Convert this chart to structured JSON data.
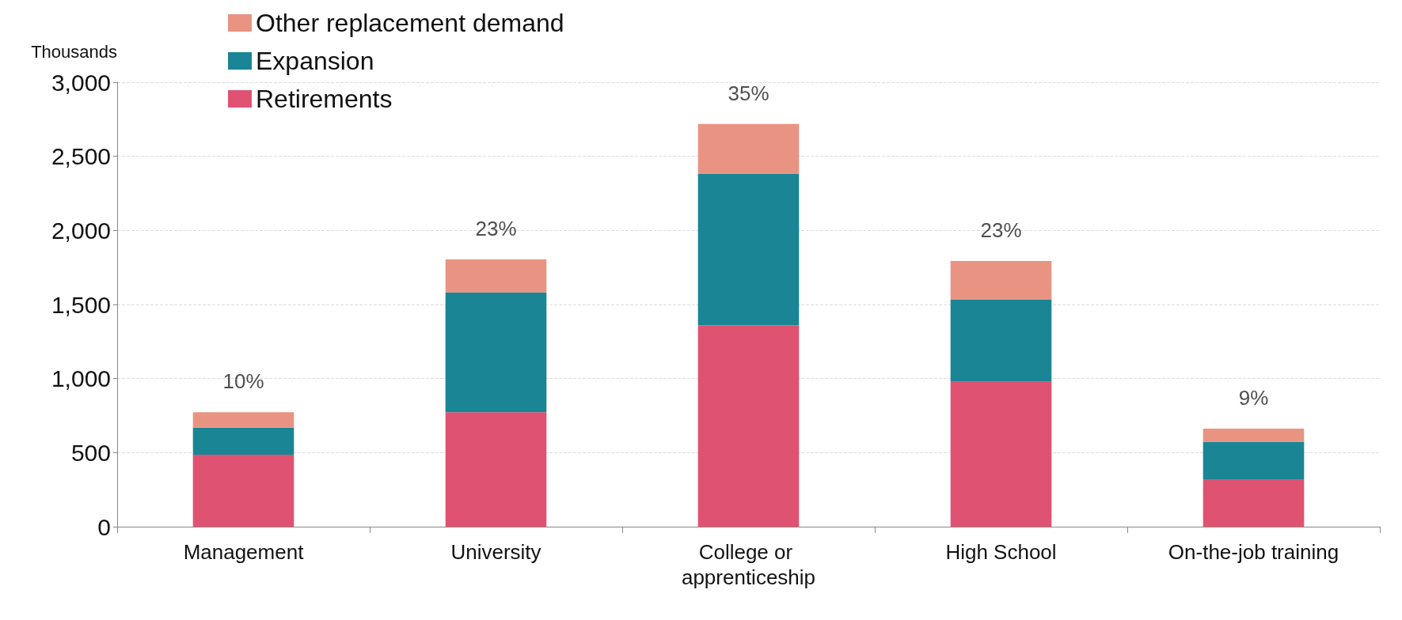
{
  "chart_data": {
    "type": "bar",
    "stacked": true,
    "ylabel": "Thousands",
    "categories": [
      "Management",
      "University",
      "College or apprenticeship",
      "High School",
      "On-the-job training"
    ],
    "series": [
      {
        "name": "Retirements",
        "color": "#e05271",
        "values": [
          486,
          773,
          1359,
          978,
          316
        ]
      },
      {
        "name": "Expansion",
        "color": "#1a8595",
        "values": [
          182,
          809,
          1025,
          557,
          258
        ]
      },
      {
        "name": "Other replacement demand",
        "color": "#e99482",
        "values": [
          105,
          222,
          334,
          258,
          88
        ]
      }
    ],
    "ylim": [
      0,
      3000
    ],
    "yticks": [
      0,
      {
        "value": 500,
        "label": "500"
      },
      {
        "value": 1000,
        "label": "1,000"
      },
      {
        "value": 1500,
        "label": "1,500"
      },
      {
        "value": 2000,
        "label": "2,000"
      },
      {
        "value": 2500,
        "label": "2,500"
      },
      {
        "value": 3000,
        "label": "3,000"
      }
    ],
    "grid": "y",
    "legend": "top left",
    "annotations": [
      {
        "text": "10%",
        "x": "Management",
        "y": 773
      },
      {
        "text": "23%",
        "x": "University",
        "y": 1804
      },
      {
        "text": "35%",
        "x": "College or apprenticeship",
        "y": 2718
      },
      {
        "text": "23%",
        "x": "High School",
        "y": 1793
      },
      {
        "text": "9%",
        "x": "On-the-job training",
        "y": 662
      }
    ]
  }
}
